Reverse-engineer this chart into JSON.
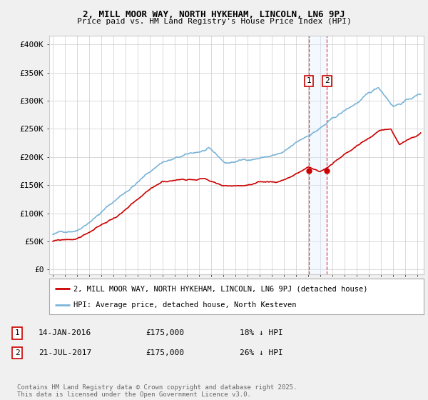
{
  "title": "2, MILL MOOR WAY, NORTH HYKEHAM, LINCOLN, LN6 9PJ",
  "subtitle": "Price paid vs. HM Land Registry's House Price Index (HPI)",
  "legend_line1": "2, MILL MOOR WAY, NORTH HYKEHAM, LINCOLN, LN6 9PJ (detached house)",
  "legend_line2": "HPI: Average price, detached house, North Kesteven",
  "annotation1_label": "1",
  "annotation1_date": "14-JAN-2016",
  "annotation1_price": "£175,000",
  "annotation1_hpi": "18% ↓ HPI",
  "annotation1_year": 2016.04,
  "annotation1_value": 175000,
  "annotation2_label": "2",
  "annotation2_date": "21-JUL-2017",
  "annotation2_price": "£175,000",
  "annotation2_hpi": "26% ↓ HPI",
  "annotation2_year": 2017.55,
  "annotation2_value": 175000,
  "footer": "Contains HM Land Registry data © Crown copyright and database right 2025.\nThis data is licensed under the Open Government Licence v3.0.",
  "yticks": [
    0,
    50000,
    100000,
    150000,
    200000,
    250000,
    300000,
    350000,
    400000
  ],
  "ylim": [
    -8000,
    415000
  ],
  "xlim_start": 1994.7,
  "xlim_end": 2025.5,
  "background_color": "#f0f0f0",
  "plot_bg_color": "#ffffff",
  "hpi_color": "#7ab4d8",
  "price_color": "#cc0000",
  "shade_color": "#ddeeff",
  "grid_color": "#cccccc",
  "vline_color": "#dd4444"
}
